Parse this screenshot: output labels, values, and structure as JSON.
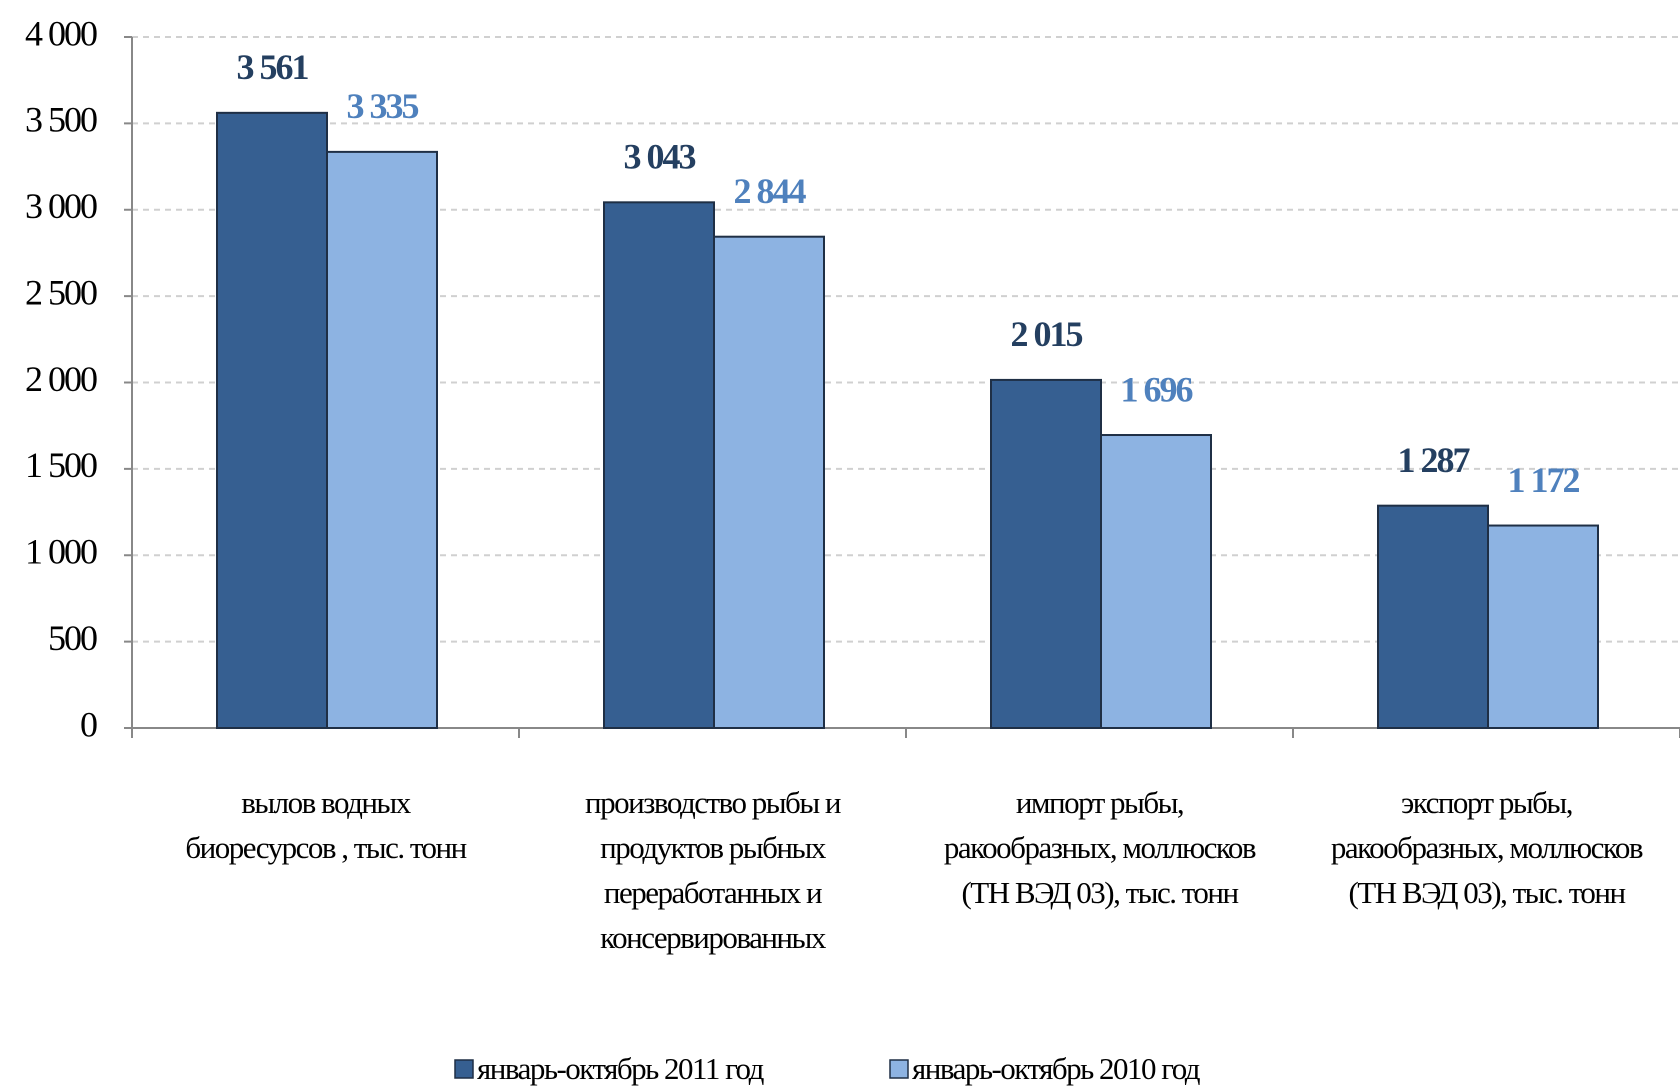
{
  "chart_data": {
    "type": "bar",
    "categories": [
      "вылов водных\nбиоресурсов , тыс. тонн",
      "производство рыбы и\nпродуктов рыбных\nпереработанных и\nконсервированных",
      "импорт рыбы,\nракообразных, моллюсков\n(ТН ВЭД 03), тыс. тонн",
      "экспорт рыбы,\nракообразных, моллюсков\n(ТН ВЭД 03), тыс. тонн"
    ],
    "series": [
      {
        "name": "январь-октябрь 2011 год",
        "color": "#365f91",
        "label_color": "#243f60",
        "values": [
          3561,
          3043,
          2015,
          1287
        ],
        "value_labels": [
          "3 561",
          "3 043",
          "2 015",
          "1 287"
        ]
      },
      {
        "name": "январь-октябрь 2010 год",
        "color": "#8db3e2",
        "label_color": "#4f81bd",
        "values": [
          3335,
          2844,
          1696,
          1172
        ],
        "value_labels": [
          "3 335",
          "2 844",
          "1 696",
          "1 172"
        ]
      }
    ],
    "ylim": [
      0,
      4000
    ],
    "yticks": [
      0,
      500,
      {
        "value": 1000,
        "label": "1 000"
      },
      {
        "value": 1500,
        "label": "1 500"
      },
      {
        "value": 2000,
        "label": "2 000"
      },
      {
        "value": 2500,
        "label": "2 500"
      },
      {
        "value": 3000,
        "label": "3 000"
      },
      {
        "value": 3500,
        "label": "3 500"
      },
      {
        "value": 4000,
        "label": "4 000"
      }
    ],
    "grid": true,
    "legend": "bottom"
  }
}
